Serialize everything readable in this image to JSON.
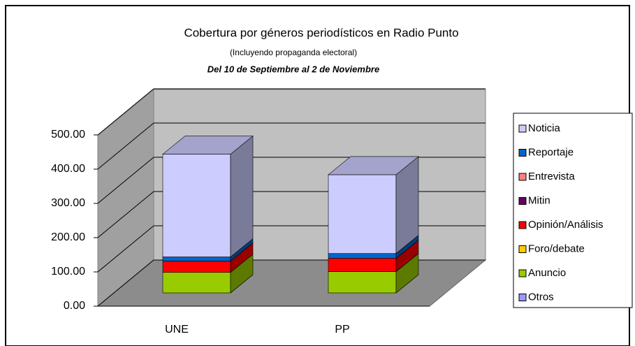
{
  "chart_data": {
    "type": "bar3d_stacked",
    "title": "Cobertura por géneros periodísticos en Radio Punto",
    "subtitle": "(Incluyendo propaganda electoral)",
    "date_range": "Del 10 de Septiembre al 2 de Noviembre",
    "categories": [
      "UNE",
      "PP"
    ],
    "series": [
      {
        "name": "Noticia",
        "color": "#ccccff",
        "values": [
          300,
          230
        ]
      },
      {
        "name": "Reportaje",
        "color": "#0066cc",
        "values": [
          12,
          14
        ]
      },
      {
        "name": "Entrevista",
        "color": "#ff8080",
        "values": [
          0,
          0
        ]
      },
      {
        "name": "Mitin",
        "color": "#660066",
        "values": [
          0,
          0
        ]
      },
      {
        "name": "Opinión/Análisis",
        "color": "#ff0000",
        "values": [
          33,
          39
        ]
      },
      {
        "name": "Foro/debate",
        "color": "#ffcc00",
        "values": [
          0,
          0
        ]
      },
      {
        "name": "Anuncio",
        "color": "#99cc00",
        "values": [
          60,
          62
        ]
      },
      {
        "name": "Otros",
        "color": "#9999ff",
        "values": [
          0,
          0
        ]
      }
    ],
    "ylim": [
      0,
      500
    ],
    "yticks": [
      {
        "value": 0,
        "label": "0.00"
      },
      {
        "value": 100,
        "label": "100.00"
      },
      {
        "value": 200,
        "label": "200.00"
      },
      {
        "value": 300,
        "label": "300.00"
      },
      {
        "value": 400,
        "label": "400.00"
      },
      {
        "value": 500,
        "label": "500.00"
      }
    ],
    "grid": true
  }
}
